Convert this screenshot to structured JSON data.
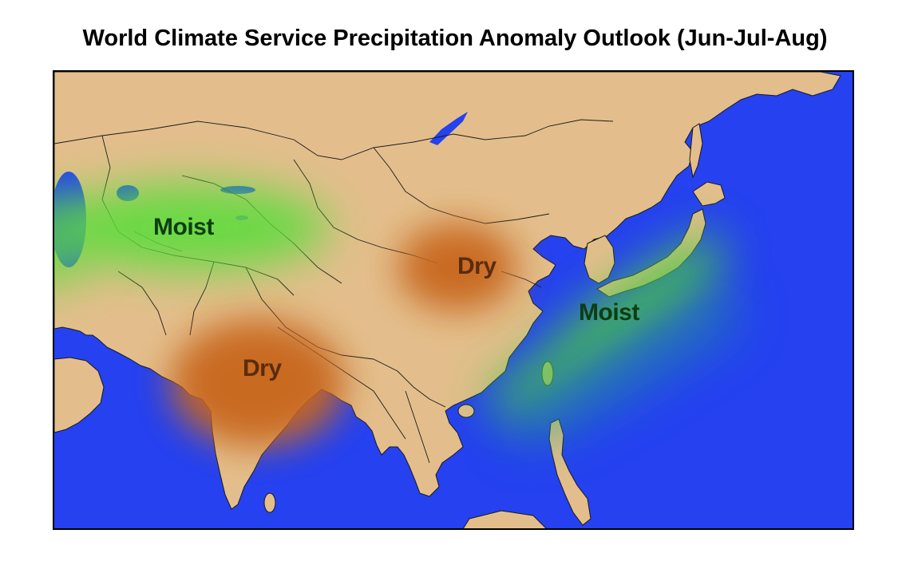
{
  "title": "World Climate Service Precipitation Anomaly Outlook (Jun-Jul-Aug)",
  "colors": {
    "ocean": "#2541f0",
    "land": "#e3be8c",
    "moist": "#5fdc3c",
    "dry": "#c8661e",
    "lake": "#2541f0",
    "border": "#222222",
    "moist_text": "#0d3d12",
    "dry_text": "#5a2c0b"
  },
  "regions": [
    {
      "id": "central-asia",
      "anomaly": "moist",
      "label": "Moist"
    },
    {
      "id": "north-china",
      "anomaly": "dry",
      "label": "Dry"
    },
    {
      "id": "india",
      "anomaly": "dry",
      "label": "Dry"
    },
    {
      "id": "japan-east-china",
      "anomaly": "moist",
      "label": "Moist"
    }
  ]
}
